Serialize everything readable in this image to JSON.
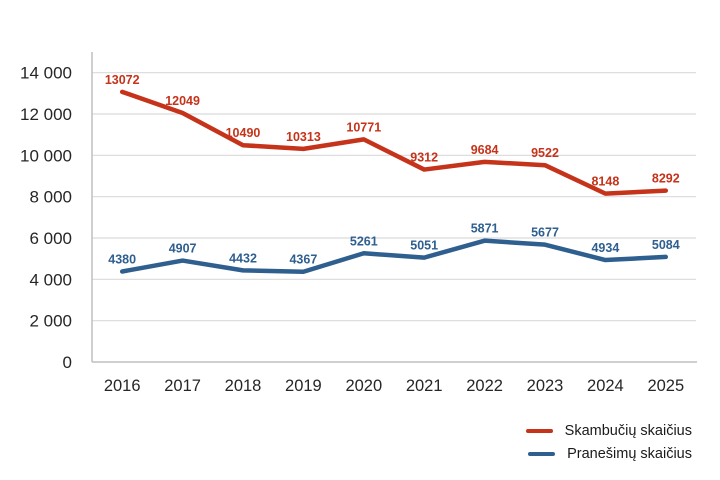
{
  "chart_data": {
    "type": "line",
    "title": "",
    "xlabel": "",
    "ylabel": "",
    "categories": [
      "2016",
      "2017",
      "2018",
      "2019",
      "2020",
      "2021",
      "2022",
      "2023",
      "2024",
      "2025"
    ],
    "series": [
      {
        "name": "Skambučių skaičius",
        "color": "#C5331A",
        "values": [
          13072,
          12049,
          10490,
          10313,
          10771,
          9312,
          9684,
          9522,
          8148,
          8292
        ]
      },
      {
        "name": "Pranešimų skaičius",
        "color": "#2F5F8F",
        "values": [
          4380,
          4907,
          4432,
          4367,
          5261,
          5051,
          5871,
          5677,
          4934,
          5084
        ]
      }
    ],
    "ylim": [
      0,
      15000
    ],
    "ytick_step": 2000,
    "yticks": [
      {
        "value": 0,
        "label": "0"
      },
      {
        "value": 2000,
        "label": "2 000"
      },
      {
        "value": 4000,
        "label": "4 000"
      },
      {
        "value": 6000,
        "label": "6 000"
      },
      {
        "value": 8000,
        "label": "8 000"
      },
      {
        "value": 10000,
        "label": "10 000"
      },
      {
        "value": 12000,
        "label": "12 000"
      },
      {
        "value": 14000,
        "label": "14 000"
      }
    ],
    "grid": true,
    "data_labels": true,
    "legend_position": "bottom-right"
  },
  "colors": {
    "background": "#FFFFFF",
    "gridline": "#D9D9D9",
    "axis_line": "#BFBFBF",
    "tick_text": "#262626"
  }
}
